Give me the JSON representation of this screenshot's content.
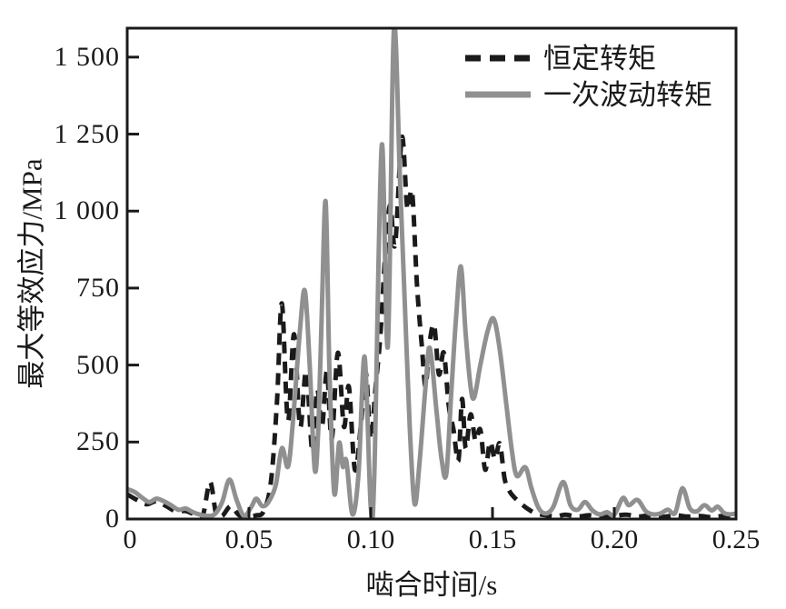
{
  "colors": {
    "constant_torque": "#1a1a1a",
    "fluctuating_torque": "#909090",
    "axis": "#1a1a1a",
    "background": "#ffffff"
  },
  "legend": {
    "items": [
      {
        "label": "恒定转矩",
        "line_style": "dashed"
      },
      {
        "label": "一次波动转矩",
        "line_style": "solid"
      }
    ]
  },
  "axes": {
    "x": {
      "title": "啮合时间/s",
      "ticks": [
        {
          "value": 0,
          "label": "0"
        },
        {
          "value": 0.05,
          "label": "0.05"
        },
        {
          "value": 0.1,
          "label": "0.10"
        },
        {
          "value": 0.15,
          "label": "0.15"
        },
        {
          "value": 0.2,
          "label": "0.20"
        },
        {
          "value": 0.25,
          "label": "0.25"
        }
      ]
    },
    "y": {
      "title": "最大等效应力/MPa",
      "ticks": [
        {
          "value": 0,
          "label": "0"
        },
        {
          "value": 250,
          "label": "250"
        },
        {
          "value": 500,
          "label": "500"
        },
        {
          "value": 750,
          "label": "750"
        },
        {
          "value": 1000,
          "label": "1 000"
        },
        {
          "value": 1250,
          "label": "1 250"
        },
        {
          "value": 1500,
          "label": "1 500"
        }
      ]
    }
  },
  "chart_data": {
    "type": "line",
    "xlabel": "啮合时间/s",
    "ylabel": "最大等效应力/MPa",
    "xlim": [
      0,
      0.25
    ],
    "ylim": [
      0,
      1594
    ],
    "grid": false,
    "legend_position": "top-right-inside",
    "series": [
      {
        "name": "恒定转矩",
        "style": "dashed",
        "color": "#1a1a1a",
        "points": [
          [
            0.0,
            80
          ],
          [
            0.004,
            62
          ],
          [
            0.008,
            48
          ],
          [
            0.012,
            58
          ],
          [
            0.016,
            42
          ],
          [
            0.02,
            25
          ],
          [
            0.024,
            26
          ],
          [
            0.028,
            14
          ],
          [
            0.031,
            10
          ],
          [
            0.034,
            120
          ],
          [
            0.0365,
            18
          ],
          [
            0.039,
            10
          ],
          [
            0.0425,
            42
          ],
          [
            0.046,
            12
          ],
          [
            0.05,
            8
          ],
          [
            0.053,
            12
          ],
          [
            0.056,
            25
          ],
          [
            0.059,
            120
          ],
          [
            0.0615,
            380
          ],
          [
            0.0635,
            700
          ],
          [
            0.066,
            320
          ],
          [
            0.0685,
            600
          ],
          [
            0.071,
            300
          ],
          [
            0.0735,
            480
          ],
          [
            0.076,
            220
          ],
          [
            0.078,
            420
          ],
          [
            0.08,
            300
          ],
          [
            0.082,
            480
          ],
          [
            0.084,
            260
          ],
          [
            0.0865,
            540
          ],
          [
            0.089,
            300
          ],
          [
            0.091,
            430
          ],
          [
            0.0935,
            160
          ],
          [
            0.096,
            310
          ],
          [
            0.098,
            475
          ],
          [
            0.1,
            260
          ],
          [
            0.102,
            430
          ],
          [
            0.104,
            600
          ],
          [
            0.106,
            870
          ],
          [
            0.108,
            1020
          ],
          [
            0.11,
            890
          ],
          [
            0.1128,
            1240
          ],
          [
            0.115,
            1010
          ],
          [
            0.117,
            1060
          ],
          [
            0.119,
            760
          ],
          [
            0.121,
            560
          ],
          [
            0.1225,
            430
          ],
          [
            0.124,
            560
          ],
          [
            0.126,
            630
          ],
          [
            0.128,
            470
          ],
          [
            0.13,
            540
          ],
          [
            0.132,
            370
          ],
          [
            0.134,
            290
          ],
          [
            0.136,
            190
          ],
          [
            0.1375,
            390
          ],
          [
            0.139,
            230
          ],
          [
            0.141,
            340
          ],
          [
            0.143,
            255
          ],
          [
            0.145,
            290
          ],
          [
            0.147,
            160
          ],
          [
            0.149,
            250
          ],
          [
            0.151,
            195
          ],
          [
            0.153,
            245
          ],
          [
            0.155,
            130
          ],
          [
            0.157,
            90
          ],
          [
            0.159,
            70
          ],
          [
            0.162,
            48
          ],
          [
            0.165,
            30
          ],
          [
            0.168,
            18
          ],
          [
            0.172,
            12
          ],
          [
            0.176,
            8
          ],
          [
            0.18,
            14
          ],
          [
            0.185,
            8
          ],
          [
            0.19,
            12
          ],
          [
            0.195,
            6
          ],
          [
            0.2,
            10
          ],
          [
            0.205,
            14
          ],
          [
            0.21,
            8
          ],
          [
            0.215,
            12
          ],
          [
            0.22,
            7
          ],
          [
            0.225,
            12
          ],
          [
            0.23,
            8
          ],
          [
            0.235,
            10
          ],
          [
            0.24,
            6
          ],
          [
            0.245,
            10
          ],
          [
            0.25,
            8
          ]
        ]
      },
      {
        "name": "一次波动转矩",
        "style": "solid",
        "color": "#909090",
        "points": [
          [
            0.0,
            97
          ],
          [
            0.003,
            88
          ],
          [
            0.006,
            70
          ],
          [
            0.009,
            55
          ],
          [
            0.012,
            66
          ],
          [
            0.015,
            58
          ],
          [
            0.018,
            45
          ],
          [
            0.021,
            30
          ],
          [
            0.024,
            34
          ],
          [
            0.027,
            22
          ],
          [
            0.03,
            14
          ],
          [
            0.033,
            10
          ],
          [
            0.036,
            16
          ],
          [
            0.039,
            55
          ],
          [
            0.042,
            128
          ],
          [
            0.045,
            60
          ],
          [
            0.048,
            10
          ],
          [
            0.051,
            40
          ],
          [
            0.053,
            66
          ],
          [
            0.0555,
            42
          ],
          [
            0.058,
            55
          ],
          [
            0.061,
            110
          ],
          [
            0.0635,
            230
          ],
          [
            0.066,
            170
          ],
          [
            0.068,
            310
          ],
          [
            0.071,
            620
          ],
          [
            0.073,
            740
          ],
          [
            0.075,
            490
          ],
          [
            0.077,
            160
          ],
          [
            0.0785,
            300
          ],
          [
            0.08,
            700
          ],
          [
            0.0815,
            1030
          ],
          [
            0.083,
            500
          ],
          [
            0.085,
            85
          ],
          [
            0.087,
            247
          ],
          [
            0.0885,
            170
          ],
          [
            0.09,
            188
          ],
          [
            0.0925,
            15
          ],
          [
            0.095,
            150
          ],
          [
            0.0975,
            527
          ],
          [
            0.1,
            40
          ],
          [
            0.1015,
            150
          ],
          [
            0.1045,
            1213
          ],
          [
            0.107,
            560
          ],
          [
            0.1095,
            1590
          ],
          [
            0.112,
            1100
          ],
          [
            0.114,
            700
          ],
          [
            0.116,
            300
          ],
          [
            0.118,
            50
          ],
          [
            0.12,
            180
          ],
          [
            0.1225,
            430
          ],
          [
            0.1243,
            555
          ],
          [
            0.127,
            350
          ],
          [
            0.129,
            200
          ],
          [
            0.131,
            145
          ],
          [
            0.133,
            400
          ],
          [
            0.135,
            650
          ],
          [
            0.137,
            820
          ],
          [
            0.139,
            600
          ],
          [
            0.141,
            430
          ],
          [
            0.1425,
            395
          ],
          [
            0.145,
            500
          ],
          [
            0.148,
            610
          ],
          [
            0.1505,
            650
          ],
          [
            0.153,
            550
          ],
          [
            0.156,
            350
          ],
          [
            0.158,
            220
          ],
          [
            0.16,
            140
          ],
          [
            0.1635,
            168
          ],
          [
            0.166,
            100
          ],
          [
            0.169,
            35
          ],
          [
            0.172,
            18
          ],
          [
            0.175,
            40
          ],
          [
            0.179,
            120
          ],
          [
            0.182,
            45
          ],
          [
            0.185,
            30
          ],
          [
            0.188,
            55
          ],
          [
            0.191,
            28
          ],
          [
            0.194,
            15
          ],
          [
            0.197,
            22
          ],
          [
            0.2,
            14
          ],
          [
            0.2035,
            68
          ],
          [
            0.206,
            45
          ],
          [
            0.2095,
            62
          ],
          [
            0.213,
            25
          ],
          [
            0.216,
            15
          ],
          [
            0.219,
            18
          ],
          [
            0.222,
            30
          ],
          [
            0.225,
            20
          ],
          [
            0.228,
            100
          ],
          [
            0.231,
            35
          ],
          [
            0.234,
            25
          ],
          [
            0.237,
            45
          ],
          [
            0.24,
            28
          ],
          [
            0.2425,
            40
          ],
          [
            0.245,
            20
          ],
          [
            0.2475,
            15
          ],
          [
            0.25,
            18
          ]
        ]
      }
    ]
  }
}
